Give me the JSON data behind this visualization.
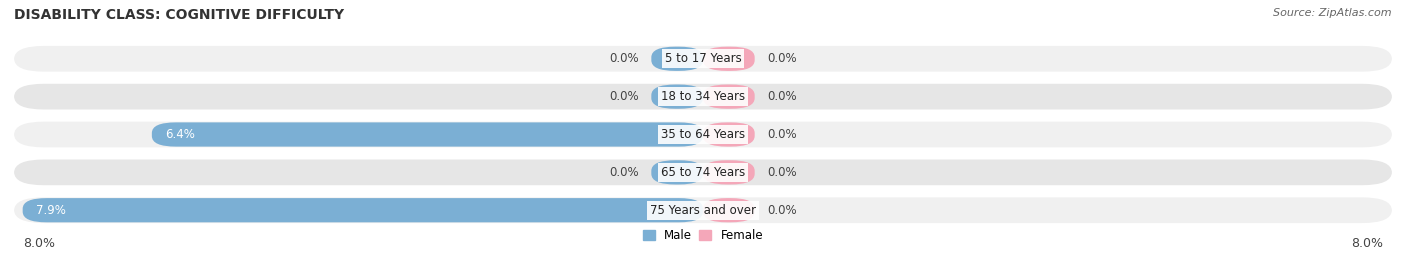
{
  "title": "DISABILITY CLASS: COGNITIVE DIFFICULTY",
  "source": "Source: ZipAtlas.com",
  "categories": [
    "5 to 17 Years",
    "18 to 34 Years",
    "35 to 64 Years",
    "65 to 74 Years",
    "75 Years and over"
  ],
  "male_values": [
    0.0,
    0.0,
    6.4,
    0.0,
    7.9
  ],
  "female_values": [
    0.0,
    0.0,
    0.0,
    0.0,
    0.0
  ],
  "male_labels": [
    "0.0%",
    "0.0%",
    "6.4%",
    "0.0%",
    "7.9%"
  ],
  "female_labels": [
    "0.0%",
    "0.0%",
    "0.0%",
    "0.0%",
    "0.0%"
  ],
  "male_color": "#7bafd4",
  "female_color": "#f4a7b9",
  "bar_bg_color_even": "#f0f0f0",
  "bar_bg_color_odd": "#e6e6e6",
  "xlim_left": -8.0,
  "xlim_right": 8.0,
  "stub_size": 0.6,
  "title_fontsize": 10,
  "label_fontsize": 8.5,
  "tick_fontsize": 9,
  "fig_width": 14.06,
  "fig_height": 2.69,
  "dpi": 100,
  "legend_male": "Male",
  "legend_female": "Female"
}
